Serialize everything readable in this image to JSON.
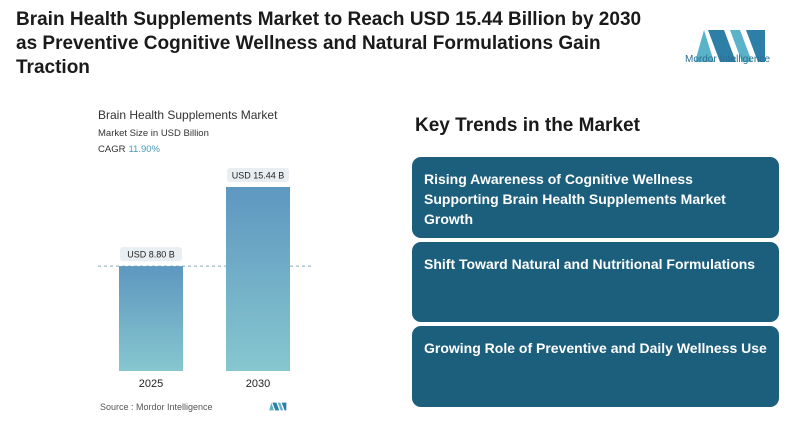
{
  "headline": "Brain Health Supplements Market to Reach USD 15.44 Billion by 2030 as Preventive Cognitive Wellness and Natural Formulations Gain Traction",
  "logo": {
    "text": "Mordor Intelligence"
  },
  "chart": {
    "title": "Brain Health Supplements Market",
    "subtitle": "Market Size in USD Billion",
    "cagr_label": "CAGR",
    "cagr_value": "11.90%",
    "source": "Source :  Mordor Intelligence"
  },
  "chart_data": {
    "type": "bar",
    "title": "Brain Health Supplements Market",
    "ylabel": "Market Size in USD Billion",
    "categories": [
      "2025",
      "2030"
    ],
    "values": [
      8.8,
      15.44
    ],
    "data_labels": [
      "USD 8.80 B",
      "USD 15.44 B"
    ],
    "ylim": [
      0,
      15.44
    ],
    "grid": false,
    "reference_line": 8.8
  },
  "trends": {
    "title": "Key Trends in the Market",
    "items": [
      "Rising Awareness of Cognitive Wellness Supporting Brain Health Supplements Market Growth",
      "Shift Toward Natural and Nutritional Formulations",
      "Growing Role of Preventive and Daily Wellness Use"
    ]
  },
  "colors": {
    "card": "#1c5f7d",
    "bar_top": "#5e97c0",
    "bar_bottom": "#86c7cf",
    "accent": "#4a9ab8"
  }
}
